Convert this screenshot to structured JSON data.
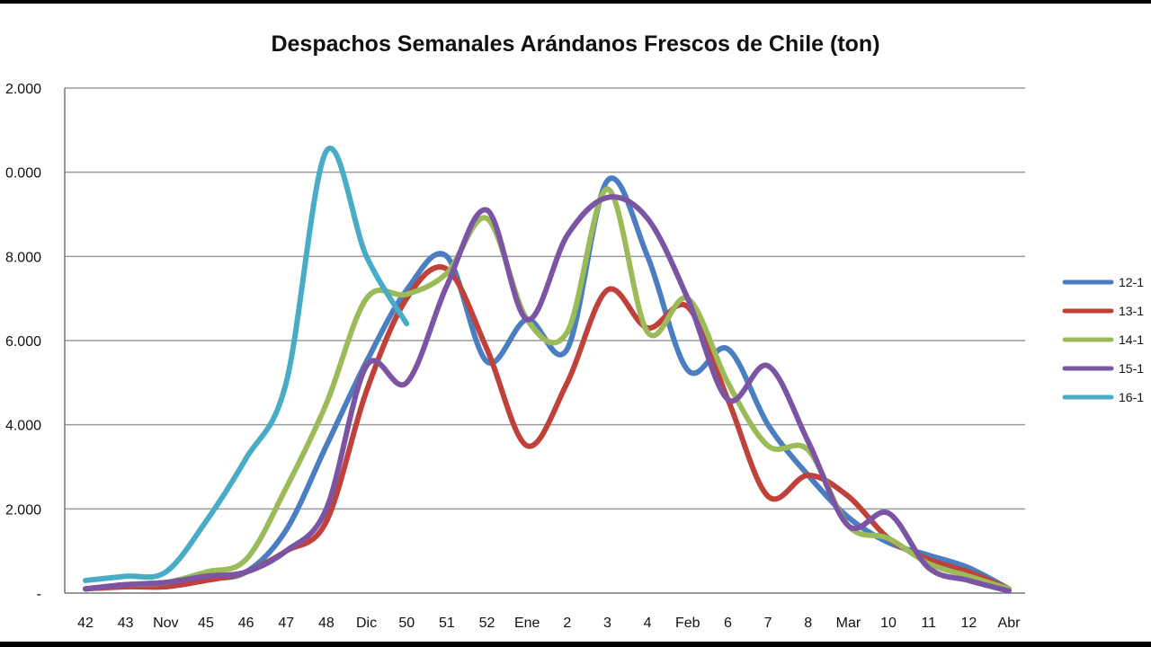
{
  "chart_data": {
    "type": "line",
    "title": "Despachos Semanales Arándanos Frescos de Chile (ton)",
    "xlabel": "",
    "ylabel": "",
    "categories": [
      "42",
      "43",
      "Nov",
      "45",
      "46",
      "47",
      "48",
      "Dic",
      "50",
      "51",
      "52",
      "Ene",
      "2",
      "3",
      "4",
      "Feb",
      "6",
      "7",
      "8",
      "Mar",
      "10",
      "11",
      "12",
      "Abr"
    ],
    "y_tick_labels": [
      "-",
      "2.000",
      "4.000",
      "6.000",
      "8.000",
      "0.000",
      "2.000"
    ],
    "ylim": [
      0,
      12000
    ],
    "grid": true,
    "legend_position": "right",
    "series": [
      {
        "name": "12-1",
        "color": "#4A7EC1",
        "values": [
          100,
          200,
          250,
          350,
          500,
          1500,
          3500,
          5500,
          7200,
          8000,
          5500,
          6500,
          5800,
          9800,
          8000,
          5300,
          5800,
          4000,
          2800,
          1800,
          1200,
          900,
          600,
          100
        ]
      },
      {
        "name": "13-1",
        "color": "#C0403A",
        "values": [
          100,
          150,
          150,
          300,
          500,
          1000,
          1700,
          4800,
          7000,
          7700,
          5800,
          3500,
          5000,
          7200,
          6300,
          6800,
          4600,
          2300,
          2800,
          2300,
          1300,
          800,
          500,
          100
        ]
      },
      {
        "name": "14-1",
        "color": "#9BBB59",
        "values": [
          100,
          200,
          250,
          500,
          800,
          2500,
          4500,
          7000,
          7100,
          7600,
          8900,
          6500,
          6200,
          9600,
          6200,
          7000,
          5000,
          3500,
          3400,
          1600,
          1300,
          700,
          400,
          100
        ]
      },
      {
        "name": "15-1",
        "color": "#7B55A3",
        "values": [
          100,
          200,
          250,
          400,
          500,
          1000,
          2000,
          5400,
          5000,
          7300,
          9100,
          6500,
          8500,
          9400,
          8900,
          7000,
          4600,
          5400,
          3600,
          1600,
          1900,
          600,
          300,
          50
        ]
      },
      {
        "name": "16-1",
        "color": "#48ACC6",
        "values": [
          300,
          400,
          500,
          1700,
          3200,
          5000,
          10500,
          8000,
          6400,
          null,
          null,
          null,
          null,
          null,
          null,
          null,
          null,
          null,
          null,
          null,
          null,
          null,
          null,
          null
        ]
      }
    ]
  }
}
